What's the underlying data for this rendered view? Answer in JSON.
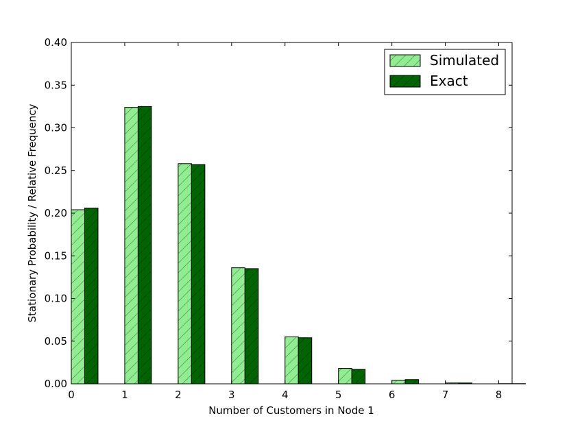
{
  "colors": {
    "simulated": "#90ee90",
    "exact": "#006400",
    "edge": "#000000"
  },
  "chart_data": {
    "type": "bar",
    "title": "",
    "xlabel": "Number of Customers in Node 1",
    "ylabel": "Stationary Probability / Relative Frequency",
    "x": [
      0,
      1,
      2,
      3,
      4,
      5,
      6,
      7,
      8
    ],
    "xlim": [
      0,
      8.25
    ],
    "ylim": [
      0.0,
      0.4
    ],
    "xticks": [
      "0",
      "1",
      "2",
      "3",
      "4",
      "5",
      "6",
      "7",
      "8"
    ],
    "yticks": [
      "0.00",
      "0.05",
      "0.10",
      "0.15",
      "0.20",
      "0.25",
      "0.30",
      "0.35",
      "0.40"
    ],
    "bar_width": 0.25,
    "hatch": "diagonal",
    "grid": false,
    "legend_position": "top-right",
    "series": [
      {
        "name": "Simulated",
        "values": [
          0.204,
          0.324,
          0.258,
          0.136,
          0.055,
          0.018,
          0.004,
          0.001,
          0.0002
        ]
      },
      {
        "name": "Exact",
        "values": [
          0.206,
          0.325,
          0.257,
          0.135,
          0.054,
          0.017,
          0.005,
          0.001,
          0.0002
        ]
      }
    ]
  }
}
